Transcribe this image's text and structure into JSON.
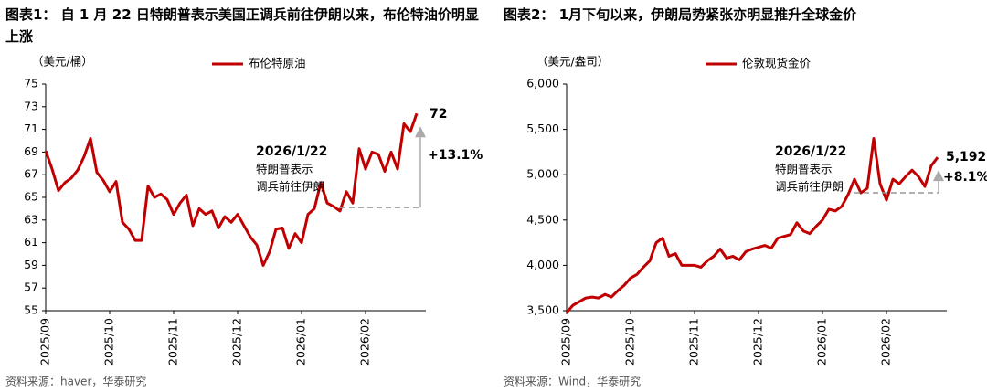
{
  "chart_data": [
    {
      "type": "line",
      "title": "图表1： 自 1 月 22 日特朗普表示美国正调兵前往伊朗以来，布伦特油价明显上涨",
      "unit": "（美元/桶）",
      "categories": [
        "2025/09",
        null,
        null,
        null,
        null,
        null,
        null,
        null,
        null,
        null,
        "2025/10",
        null,
        null,
        null,
        null,
        null,
        null,
        null,
        null,
        null,
        "2025/11",
        null,
        null,
        null,
        null,
        null,
        null,
        null,
        null,
        null,
        "2025/12",
        null,
        null,
        null,
        null,
        null,
        null,
        null,
        null,
        null,
        "2026/01",
        null,
        null,
        null,
        null,
        null,
        null,
        null,
        null,
        null,
        "2026/02",
        null,
        null,
        null,
        null,
        null,
        null,
        null,
        null
      ],
      "series": [
        {
          "name": "布伦特原油",
          "color": "#c00000",
          "values": [
            69.1,
            67.5,
            65.6,
            66.3,
            66.7,
            67.4,
            68.6,
            70.2,
            67.2,
            66.5,
            65.5,
            66.4,
            62.8,
            62.2,
            61.2,
            61.2,
            66.0,
            65.0,
            65.3,
            64.8,
            63.5,
            64.5,
            65.2,
            62.5,
            64.0,
            63.5,
            63.8,
            62.3,
            63.3,
            62.8,
            63.5,
            62.5,
            61.5,
            60.8,
            59.0,
            60.2,
            62.2,
            62.3,
            60.5,
            61.8,
            61.0,
            63.5,
            64.0,
            66.3,
            64.5,
            64.2,
            63.8,
            65.5,
            64.5,
            69.3,
            67.5,
            69.0,
            68.8,
            67.3,
            69.0,
            67.5,
            71.5,
            70.8,
            72.4
          ]
        }
      ],
      "ylim": [
        55,
        75
      ],
      "yticks": [
        55,
        57,
        59,
        61,
        63,
        65,
        67,
        69,
        71,
        73,
        75
      ],
      "baseline": 64.1,
      "annotation": {
        "date": "2026/1/22",
        "lines": [
          "特朗普表示",
          "调兵前往伊朗"
        ]
      },
      "end_label": "72",
      "change": "+13.1%",
      "source": "资料来源：haver，华泰研究"
    },
    {
      "type": "line",
      "title": "图表2： 1月下旬以来，伊朗局势紧张亦明显推升全球金价",
      "unit": "（美元/盎司）",
      "categories": [
        "2025/09",
        null,
        null,
        null,
        null,
        null,
        null,
        null,
        null,
        null,
        "2025/10",
        null,
        null,
        null,
        null,
        null,
        null,
        null,
        null,
        null,
        "2025/11",
        null,
        null,
        null,
        null,
        null,
        null,
        null,
        null,
        null,
        "2025/12",
        null,
        null,
        null,
        null,
        null,
        null,
        null,
        null,
        null,
        "2026/01",
        null,
        null,
        null,
        null,
        null,
        null,
        null,
        null,
        null,
        "2026/02",
        null,
        null,
        null,
        null,
        null,
        null,
        null,
        null
      ],
      "series": [
        {
          "name": "伦敦现货金价",
          "color": "#c00000",
          "values": [
            3480,
            3560,
            3600,
            3640,
            3650,
            3640,
            3680,
            3650,
            3720,
            3780,
            3860,
            3900,
            3980,
            4050,
            4250,
            4300,
            4100,
            4130,
            4000,
            4000,
            4000,
            3980,
            4050,
            4100,
            4180,
            4080,
            4100,
            4060,
            4150,
            4180,
            4200,
            4220,
            4190,
            4300,
            4320,
            4340,
            4470,
            4380,
            4350,
            4430,
            4500,
            4620,
            4600,
            4650,
            4780,
            4950,
            4800,
            4850,
            5400,
            4900,
            4720,
            4950,
            4900,
            4980,
            5050,
            4980,
            4870,
            5100,
            5192
          ]
        }
      ],
      "ylim": [
        3500,
        6000
      ],
      "yticks": [
        {
          "value": 3500,
          "label": "3,500"
        },
        {
          "value": 4000,
          "label": "4,000"
        },
        {
          "value": 4500,
          "label": "4,500"
        },
        {
          "value": 5000,
          "label": "5,000"
        },
        {
          "value": 5500,
          "label": "5,500"
        },
        {
          "value": 6000,
          "label": "6,000"
        }
      ],
      "baseline": 4800,
      "annotation": {
        "date": "2026/1/22",
        "lines": [
          "特朗普表示",
          "调兵前往伊朗"
        ]
      },
      "end_label": "5,192",
      "change": "+8.1%",
      "source": "资料来源：Wind，华泰研究"
    }
  ]
}
